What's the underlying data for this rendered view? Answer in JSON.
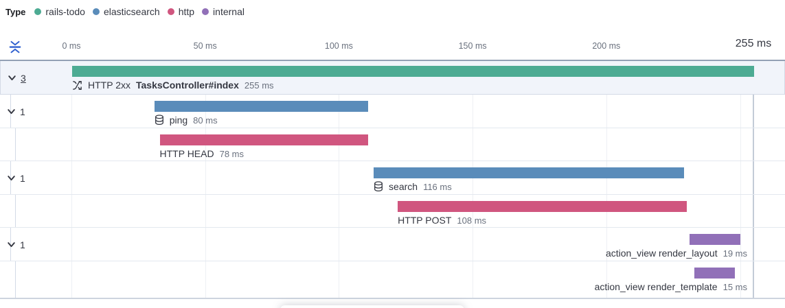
{
  "chart_data": {
    "type": "bar",
    "subtype": "trace-waterfall-timeline",
    "x_unit": "ms",
    "x_range": [
      0,
      255
    ],
    "grid": true,
    "ticks": [
      {
        "ms": 0,
        "label": "0 ms"
      },
      {
        "ms": 50,
        "label": "50 ms"
      },
      {
        "ms": 100,
        "label": "100 ms"
      },
      {
        "ms": 150,
        "label": "150 ms"
      },
      {
        "ms": 200,
        "label": "200 ms"
      },
      {
        "ms": 250,
        "label": ""
      }
    ],
    "end_tick": {
      "ms": 255,
      "label": "255 ms"
    },
    "legend": {
      "title": "Type",
      "position": "top-left",
      "items": [
        {
          "label": "rails-todo",
          "color": "#4dab93"
        },
        {
          "label": "elasticsearch",
          "color": "#5a8cba"
        },
        {
          "label": "http",
          "color": "#d0567f"
        },
        {
          "label": "internal",
          "color": "#9170b8"
        }
      ]
    },
    "rows": [
      {
        "prefix": "HTTP 2xx",
        "name": "TasksController#index",
        "service": "rails-todo",
        "color": "#4dab93",
        "start_ms": 0,
        "duration_ms": 255,
        "duration_label": "255 ms",
        "depth": 0,
        "children_count": "3",
        "icon": "merge-icon",
        "selected": true,
        "label_align": "left"
      },
      {
        "prefix": "",
        "name": "ping",
        "service": "elasticsearch",
        "color": "#5a8cba",
        "start_ms": 31,
        "duration_ms": 80,
        "duration_label": "80 ms",
        "depth": 1,
        "children_count": "1",
        "icon": "database-icon",
        "selected": false,
        "label_align": "left"
      },
      {
        "prefix": "",
        "name": "HTTP HEAD",
        "service": "http",
        "color": "#d0567f",
        "start_ms": 33,
        "duration_ms": 78,
        "duration_label": "78 ms",
        "depth": 2,
        "children_count": "",
        "icon": "",
        "selected": false,
        "label_align": "left"
      },
      {
        "prefix": "",
        "name": "search",
        "service": "elasticsearch",
        "color": "#5a8cba",
        "start_ms": 113,
        "duration_ms": 116,
        "duration_label": "116 ms",
        "depth": 1,
        "children_count": "1",
        "icon": "database-icon",
        "selected": false,
        "label_align": "left"
      },
      {
        "prefix": "",
        "name": "HTTP POST",
        "service": "http",
        "color": "#d0567f",
        "start_ms": 122,
        "duration_ms": 108,
        "duration_label": "108 ms",
        "depth": 2,
        "children_count": "",
        "icon": "",
        "selected": false,
        "label_align": "left"
      },
      {
        "prefix": "",
        "name": "action_view render_layout",
        "service": "internal",
        "color": "#9170b8",
        "start_ms": 231,
        "duration_ms": 19,
        "duration_label": "19 ms",
        "depth": 1,
        "children_count": "1",
        "icon": "",
        "selected": false,
        "label_align": "right"
      },
      {
        "prefix": "",
        "name": "action_view render_template",
        "service": "internal",
        "color": "#9170b8",
        "start_ms": 233,
        "duration_ms": 15,
        "duration_label": "15 ms",
        "depth": 2,
        "children_count": "",
        "icon": "",
        "selected": false,
        "label_align": "right"
      }
    ]
  },
  "toolbar": {
    "collapse_icon": "fold-icon",
    "collapse_icon_color": "#3060cf"
  },
  "icon_colors": {
    "row_icon": "#343741",
    "chevron": "#343741"
  }
}
